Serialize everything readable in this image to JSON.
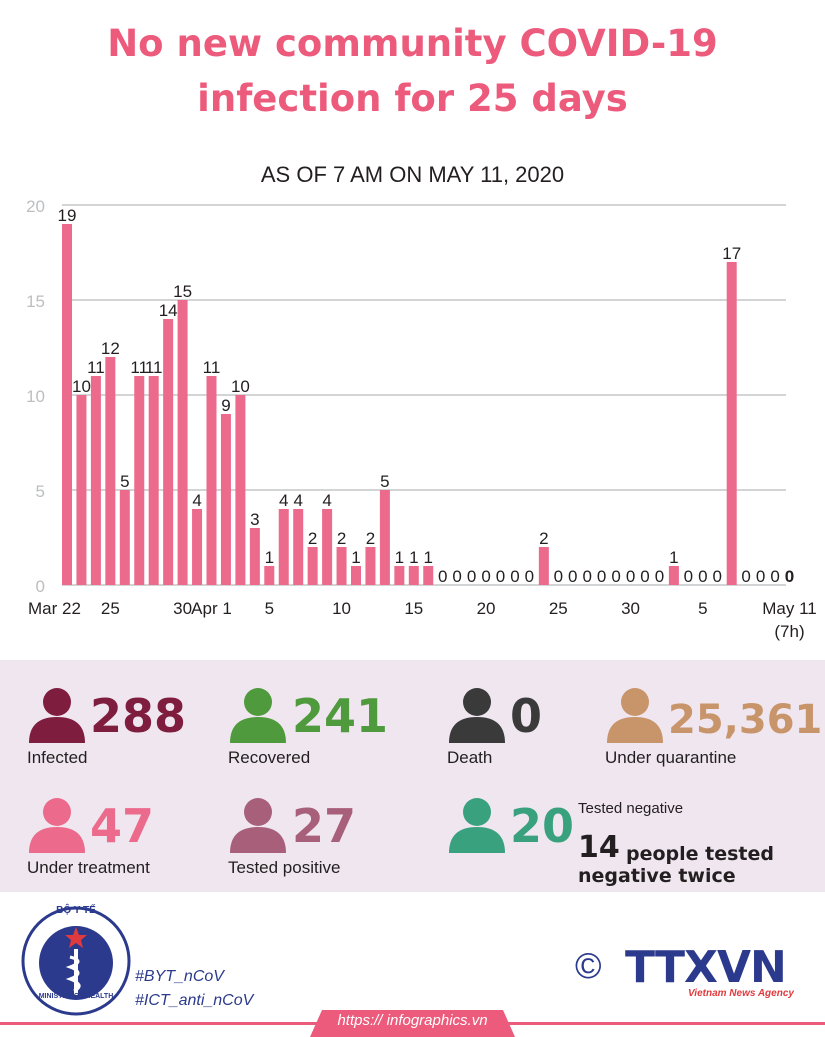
{
  "header": {
    "title_line1": "No new community COVID-19",
    "title_line2": "infection for 25 days",
    "subtitle": "AS OF 7 AM ON  MAY 11, 2020"
  },
  "colors": {
    "accent": "#ec5b7c",
    "bar": "#ec6a8c",
    "infected": "#7e1d3e",
    "recovered": "#4f9a3c",
    "death": "#3a3a3a",
    "quarantine": "#c8946a",
    "under_treatment": "#ec6a8c",
    "tested_positive": "#a85f7a",
    "tested_negative": "#3aa17e",
    "stats_bg": "#efe6ef",
    "brand_blue": "#2b3a8c"
  },
  "chart_data": {
    "type": "bar",
    "title": "",
    "xlabel": "",
    "ylabel": "",
    "ylim": [
      0,
      20
    ],
    "yticks": [
      0,
      5,
      10,
      15,
      20
    ],
    "grid": true,
    "x": [
      "Mar 22",
      "Mar 23",
      "Mar 24",
      "Mar 25",
      "Mar 26",
      "Mar 27",
      "Mar 28",
      "Mar 29",
      "Mar 30",
      "Mar 31",
      "Apr 1",
      "Apr 2",
      "Apr 3",
      "Apr 4",
      "Apr 5",
      "Apr 6",
      "Apr 7",
      "Apr 8",
      "Apr 9",
      "Apr 10",
      "Apr 11",
      "Apr 12",
      "Apr 13",
      "Apr 14",
      "Apr 15",
      "Apr 16",
      "Apr 17",
      "Apr 18",
      "Apr 19",
      "Apr 20",
      "Apr 21",
      "Apr 22",
      "Apr 23",
      "Apr 24",
      "Apr 25",
      "Apr 26",
      "Apr 27",
      "Apr 28",
      "Apr 29",
      "Apr 30",
      "May 1",
      "May 2",
      "May 3",
      "May 4",
      "May 5",
      "May 6",
      "May 7",
      "May 8",
      "May 9",
      "May 10",
      "May 11"
    ],
    "values": [
      19,
      10,
      11,
      12,
      5,
      11,
      11,
      14,
      15,
      4,
      11,
      9,
      10,
      3,
      1,
      4,
      4,
      2,
      4,
      2,
      1,
      2,
      5,
      1,
      1,
      1,
      0,
      0,
      0,
      0,
      0,
      0,
      0,
      2,
      0,
      0,
      0,
      0,
      0,
      0,
      0,
      0,
      1,
      0,
      0,
      0,
      17,
      0,
      0,
      0,
      0
    ],
    "tick_labels": [
      {
        "index": 0,
        "label": "Mar 22"
      },
      {
        "index": 3,
        "label": "25"
      },
      {
        "index": 8,
        "label": "30"
      },
      {
        "index": 10,
        "label": "Apr 1"
      },
      {
        "index": 14,
        "label": "5"
      },
      {
        "index": 19,
        "label": "10"
      },
      {
        "index": 24,
        "label": "15"
      },
      {
        "index": 29,
        "label": "20"
      },
      {
        "index": 34,
        "label": "25"
      },
      {
        "index": 39,
        "label": "30"
      },
      {
        "index": 44,
        "label": "5"
      },
      {
        "index": 50,
        "label": "May 11"
      }
    ],
    "last_tick_note": "(7h)"
  },
  "stats": {
    "infected": {
      "value": "288",
      "label": "Infected"
    },
    "recovered": {
      "value": "241",
      "label": "Recovered"
    },
    "death": {
      "value": "0",
      "label": "Death"
    },
    "quarantine": {
      "value": "25,361",
      "label": "Under quarantine"
    },
    "under_treatment": {
      "value": "47",
      "label": "Under treatment"
    },
    "tested_positive": {
      "value": "27",
      "label": "Tested positive"
    },
    "tested_negative": {
      "value": "20",
      "label": "Tested negative"
    },
    "negative_twice": {
      "value": "14",
      "text1": "people tested",
      "text2": "negative twice"
    }
  },
  "footer": {
    "ministry_top": "BỘ Y TẾ",
    "ministry_bottom": "MINISTRY OF HEALTH",
    "hashtag1": "#BYT_nCoV",
    "hashtag2": "#ICT_anti_nCoV",
    "copyright": "©",
    "agency": "TTXVN",
    "agency_sub": "Vietnam News Agency",
    "url": "https:// infographics.vn"
  }
}
